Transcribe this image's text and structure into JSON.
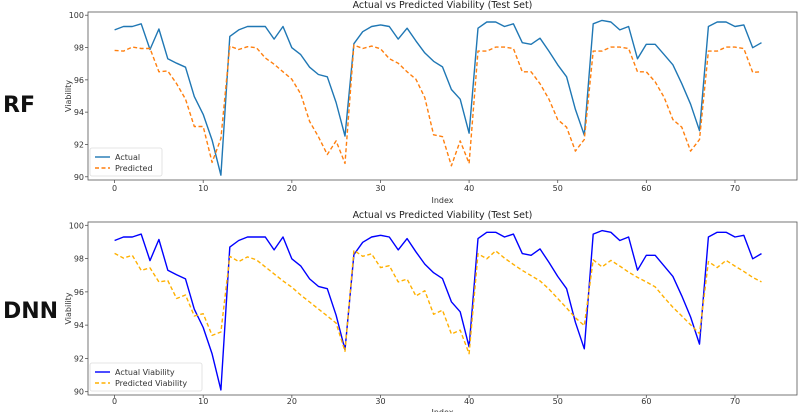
{
  "chart_data": [
    {
      "type": "line",
      "row_label": "RF",
      "title": "Actual vs Predicted Viability (Test Set)",
      "xlabel": "Index",
      "ylabel": "Viability",
      "xlim": [
        -3,
        77
      ],
      "ylim": [
        89.8,
        100.2
      ],
      "xticks": [
        0,
        10,
        20,
        30,
        40,
        50,
        60,
        70
      ],
      "yticks": [
        90,
        92,
        94,
        96,
        98,
        100
      ],
      "grid": false,
      "legend": "bottom-left",
      "series": [
        {
          "name": "Actual",
          "color": "#1f77b4",
          "style": "solid",
          "values": [
            99.09,
            99.3,
            99.3,
            99.47,
            97.88,
            99.15,
            97.3,
            97.03,
            96.78,
            94.96,
            93.86,
            92.27,
            90.1,
            98.69,
            99.09,
            99.3,
            99.3,
            99.3,
            98.52,
            99.3,
            97.99,
            97.56,
            96.78,
            96.33,
            96.19,
            94.6,
            92.52,
            98.24,
            98.98,
            99.3,
            99.4,
            99.3,
            98.52,
            99.2,
            98.41,
            97.67,
            97.15,
            96.8,
            95.4,
            94.8,
            92.7,
            99.2,
            99.58,
            99.58,
            99.3,
            99.47,
            98.3,
            98.2,
            98.58,
            97.78,
            96.93,
            96.19,
            94.17,
            92.58,
            99.47,
            99.68,
            99.58,
            99.09,
            99.3,
            97.3,
            98.2,
            98.2,
            97.56,
            96.93,
            95.76,
            94.49,
            92.86,
            99.3,
            99.58,
            99.58,
            99.3,
            99.4,
            97.99,
            98.3
          ]
        },
        {
          "name": "Predicted",
          "color": "#ff7f0e",
          "style": "dashed",
          "values": [
            97.82,
            97.78,
            98.03,
            97.94,
            97.94,
            96.5,
            96.55,
            95.76,
            94.81,
            93.11,
            93.11,
            90.89,
            92.37,
            98.09,
            97.88,
            98.05,
            97.99,
            97.35,
            96.97,
            96.5,
            96.04,
            95.13,
            93.43,
            92.48,
            91.38,
            92.22,
            90.83,
            98.16,
            97.94,
            98.09,
            97.92,
            97.31,
            97.03,
            96.5,
            96.04,
            94.9,
            92.6,
            92.48,
            90.68,
            92.22,
            90.83,
            97.78,
            97.78,
            98.03,
            98.03,
            97.94,
            96.5,
            96.5,
            95.76,
            94.81,
            93.54,
            93.07,
            91.59,
            92.31,
            97.78,
            97.78,
            98.03,
            98.03,
            97.94,
            96.5,
            96.5,
            95.87,
            94.92,
            93.54,
            93.07,
            91.59,
            92.31,
            97.78,
            97.78,
            98.03,
            98.03,
            97.94,
            96.46,
            96.5
          ]
        }
      ]
    },
    {
      "type": "line",
      "row_label": "DNN",
      "title": "Actual vs Predicted Viability (Test Set)",
      "xlabel": "Index",
      "ylabel": "Viability",
      "xlim": [
        -3,
        77
      ],
      "ylim": [
        89.8,
        100.2
      ],
      "xticks": [
        0,
        10,
        20,
        30,
        40,
        50,
        60,
        70
      ],
      "yticks": [
        90,
        92,
        94,
        96,
        98,
        100
      ],
      "grid": false,
      "legend": "bottom-left",
      "series": [
        {
          "name": "Actual Viability",
          "color": "#0000ff",
          "style": "solid",
          "values": [
            99.09,
            99.3,
            99.3,
            99.47,
            97.88,
            99.15,
            97.3,
            97.03,
            96.78,
            94.96,
            93.86,
            92.27,
            90.1,
            98.69,
            99.09,
            99.3,
            99.3,
            99.3,
            98.52,
            99.3,
            97.99,
            97.56,
            96.78,
            96.33,
            96.19,
            94.6,
            92.52,
            98.24,
            98.98,
            99.3,
            99.4,
            99.3,
            98.52,
            99.2,
            98.41,
            97.67,
            97.15,
            96.8,
            95.4,
            94.8,
            92.7,
            99.2,
            99.58,
            99.58,
            99.3,
            99.47,
            98.3,
            98.2,
            98.58,
            97.78,
            96.93,
            96.19,
            94.17,
            92.58,
            99.47,
            99.68,
            99.58,
            99.09,
            99.3,
            97.3,
            98.2,
            98.2,
            97.56,
            96.93,
            95.76,
            94.49,
            92.86,
            99.3,
            99.58,
            99.58,
            99.3,
            99.4,
            97.99,
            98.3
          ]
        },
        {
          "name": "Predicted Viability",
          "color": "#ffb000",
          "style": "dashed",
          "values": [
            98.31,
            98.03,
            98.2,
            97.29,
            97.44,
            96.6,
            96.68,
            95.6,
            95.81,
            94.55,
            94.69,
            93.38,
            93.59,
            98.14,
            97.82,
            98.1,
            97.93,
            97.5,
            97.08,
            96.66,
            96.28,
            95.81,
            95.39,
            94.97,
            94.55,
            94.12,
            92.43,
            98.5,
            98.14,
            98.29,
            97.46,
            97.57,
            96.6,
            96.77,
            95.75,
            96.07,
            94.65,
            94.9,
            93.47,
            93.7,
            92.28,
            98.29,
            97.99,
            98.46,
            98.03,
            97.65,
            97.29,
            96.98,
            96.66,
            96.17,
            95.6,
            95.03,
            94.44,
            93.97,
            97.93,
            97.5,
            97.89,
            97.55,
            97.19,
            96.87,
            96.6,
            96.3,
            95.67,
            95.07,
            94.55,
            94.02,
            93.49,
            97.82,
            97.46,
            97.89,
            97.55,
            97.23,
            96.87,
            96.6
          ]
        }
      ]
    }
  ]
}
